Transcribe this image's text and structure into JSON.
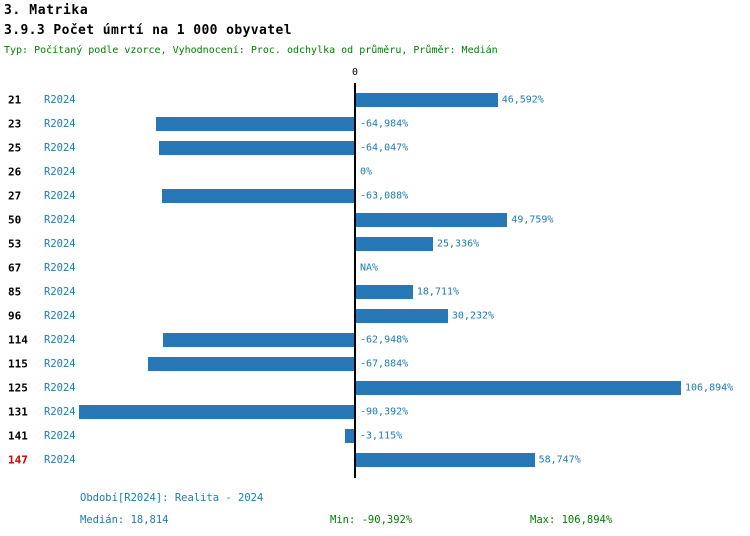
{
  "header": {
    "section_title": "3. Matrika",
    "chart_title": "3.9.3 Počet úmrtí na 1 000 obyvatel",
    "meta_line": "Typ: Počítaný podle vzorce, Vyhodnocení: Proc. odchylka od průměru, Průměr: Medián"
  },
  "axis": {
    "zero_label": "0"
  },
  "footer": {
    "period_label": "Období[R2024]: Realita - 2024",
    "median_label": "Medián: 18,814",
    "min_label": "Min: -90,392%",
    "max_label": "Max: 106,894%"
  },
  "colors": {
    "bar": "#2878b8",
    "text_blue": "#1d7bb0",
    "text_green": "#008000",
    "highlight": "#cc0000",
    "axis": "#000000"
  },
  "chart_data": {
    "type": "bar",
    "orientation": "horizontal",
    "title": "3.9.3 Počet úmrtí na 1 000 obyvatel",
    "series_label": "R2024",
    "unit": "%",
    "xlim": [
      -100,
      115
    ],
    "median": 18.814,
    "min": -90.392,
    "max": 106.894,
    "rows": [
      {
        "id": "21",
        "series": "R2024",
        "value": 46.592,
        "label": "46,592%"
      },
      {
        "id": "23",
        "series": "R2024",
        "value": -64.984,
        "label": "-64,984%"
      },
      {
        "id": "25",
        "series": "R2024",
        "value": -64.047,
        "label": "-64,047%"
      },
      {
        "id": "26",
        "series": "R2024",
        "value": 0,
        "label": "0%"
      },
      {
        "id": "27",
        "series": "R2024",
        "value": -63.088,
        "label": "-63,088%"
      },
      {
        "id": "50",
        "series": "R2024",
        "value": 49.759,
        "label": "49,759%"
      },
      {
        "id": "53",
        "series": "R2024",
        "value": 25.336,
        "label": "25,336%"
      },
      {
        "id": "67",
        "series": "R2024",
        "value": null,
        "label": "NA%"
      },
      {
        "id": "85",
        "series": "R2024",
        "value": 18.711,
        "label": "18,711%"
      },
      {
        "id": "96",
        "series": "R2024",
        "value": 30.232,
        "label": "30,232%"
      },
      {
        "id": "114",
        "series": "R2024",
        "value": -62.948,
        "label": "-62,948%"
      },
      {
        "id": "115",
        "series": "R2024",
        "value": -67.884,
        "label": "-67,884%"
      },
      {
        "id": "125",
        "series": "R2024",
        "value": 106.894,
        "label": "106,894%"
      },
      {
        "id": "131",
        "series": "R2024",
        "value": -90.392,
        "label": "-90,392%"
      },
      {
        "id": "141",
        "series": "R2024",
        "value": -3.115,
        "label": "-3,115%"
      },
      {
        "id": "147",
        "series": "R2024",
        "value": 58.747,
        "label": "58,747%",
        "highlight": true
      }
    ]
  }
}
